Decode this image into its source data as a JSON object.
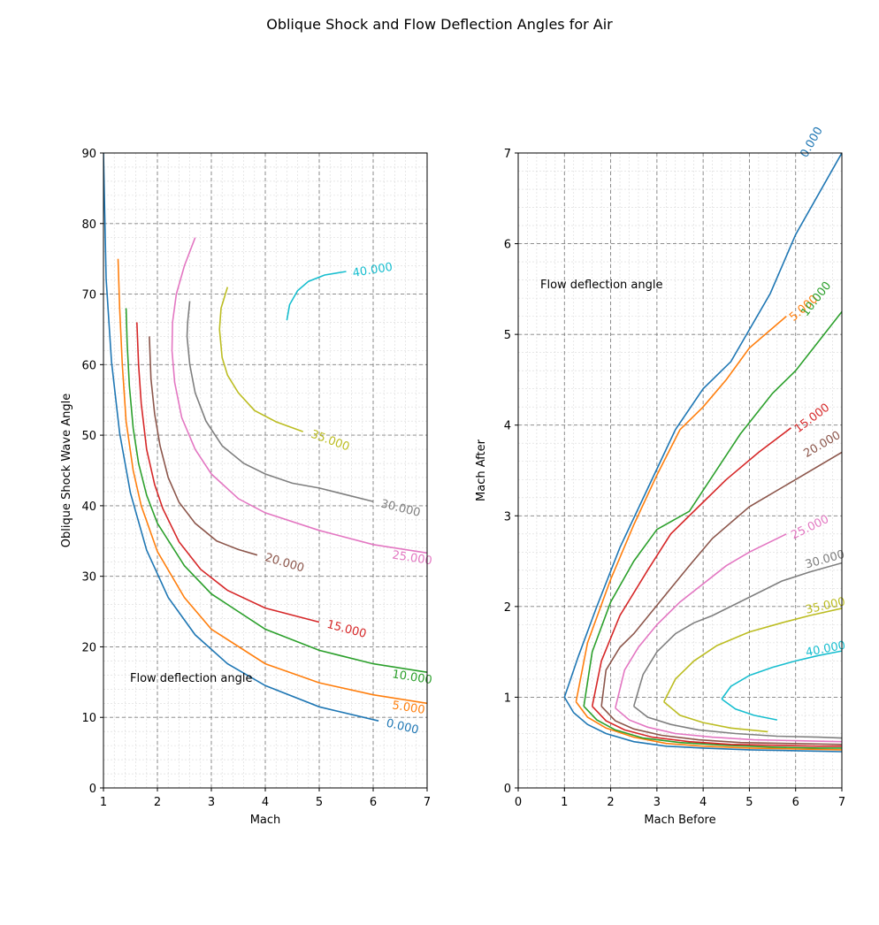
{
  "title": "Oblique Shock and Flow Deflection Angles for Air",
  "chart_data": [
    {
      "type": "line",
      "subtype": "contour",
      "xlabel": "Mach",
      "ylabel": "Oblique Shock Wave Angle",
      "xlim": [
        1,
        7
      ],
      "ylim": [
        0,
        90
      ],
      "xticks": [
        1,
        2,
        3,
        4,
        5,
        6,
        7
      ],
      "yticks": [
        0,
        10,
        20,
        30,
        40,
        50,
        60,
        70,
        80,
        90
      ],
      "grid": "major dashed, minor dotted",
      "annotation": "Flow deflection angle",
      "series": [
        {
          "name": "0.000",
          "color": "#1f77b4",
          "x": [
            1.0,
            1.05,
            1.15,
            1.3,
            1.5,
            1.8,
            2.2,
            2.7,
            3.3,
            4.0,
            5.0,
            6.1
          ],
          "y": [
            90,
            72.2,
            60.4,
            50.3,
            41.8,
            33.7,
            27.0,
            21.7,
            17.6,
            14.5,
            11.5,
            9.5
          ],
          "label": "0.000"
        },
        {
          "name": "5.000",
          "color": "#ff7f0e",
          "x": [
            1.27,
            1.3,
            1.35,
            1.42,
            1.55,
            1.7,
            2.0,
            2.5,
            3.0,
            4.0,
            5.0,
            6.0,
            7.0
          ],
          "y": [
            75,
            68,
            60,
            52,
            45,
            40,
            33.5,
            27,
            22.5,
            17.6,
            14.9,
            13.2,
            12.0
          ],
          "label": "5.000"
        },
        {
          "name": "10.000",
          "color": "#2ca02c",
          "x": [
            1.42,
            1.44,
            1.48,
            1.55,
            1.65,
            1.8,
            2.0,
            2.5,
            3.0,
            4.0,
            5.0,
            6.0,
            7.0
          ],
          "y": [
            68,
            63,
            57,
            51,
            46,
            41.5,
            37.5,
            31.5,
            27.5,
            22.5,
            19.5,
            17.6,
            16.4
          ],
          "label": "10.000"
        },
        {
          "name": "15.000",
          "color": "#d62728",
          "x": [
            1.62,
            1.65,
            1.7,
            1.8,
            1.95,
            2.1,
            2.4,
            2.8,
            3.3,
            4.0,
            5.0
          ],
          "y": [
            66,
            60,
            54.5,
            48,
            43,
            39.6,
            34.9,
            31,
            28,
            25.5,
            23.5
          ],
          "label": "15.000"
        },
        {
          "name": "20.000",
          "color": "#8c564b",
          "x": [
            1.85,
            1.88,
            1.95,
            2.05,
            2.2,
            2.4,
            2.7,
            3.1,
            3.5,
            3.85
          ],
          "y": [
            64,
            58,
            53,
            48.5,
            44,
            40.5,
            37.5,
            35,
            33.8,
            33.0
          ],
          "label": "20.000"
        },
        {
          "name": "25.000",
          "color": "#e377c2",
          "x": [
            2.7,
            2.5,
            2.35,
            2.28,
            2.27,
            2.32,
            2.45,
            2.7,
            3.0,
            3.5,
            4.0,
            5.0,
            6.0,
            7.0
          ],
          "y": [
            78,
            74,
            70,
            66,
            62,
            57.5,
            52.5,
            48,
            44.5,
            41,
            39,
            36.5,
            34.5,
            33.3
          ],
          "label": "25.000"
        },
        {
          "name": "30.000",
          "color": "#7f7f7f",
          "x": [
            2.6,
            2.56,
            2.55,
            2.6,
            2.7,
            2.9,
            3.2,
            3.6,
            4.0,
            4.5,
            5.0,
            6.0
          ],
          "y": [
            69,
            66,
            64,
            60,
            56,
            52,
            48.5,
            46,
            44.5,
            43.2,
            42.5,
            40.6
          ],
          "label": "30.000"
        },
        {
          "name": "35.000",
          "color": "#bcbd22",
          "x": [
            3.3,
            3.18,
            3.15,
            3.2,
            3.3,
            3.5,
            3.8,
            4.2,
            4.7
          ],
          "y": [
            71,
            68,
            65,
            61,
            58.5,
            56,
            53.5,
            51.9,
            50.5
          ],
          "label": "35.000"
        },
        {
          "name": "40.000",
          "color": "#17becf",
          "x": [
            4.4,
            4.45,
            4.6,
            4.8,
            5.1,
            5.5
          ],
          "y": [
            66.3,
            68.5,
            70.5,
            71.8,
            72.7,
            73.2
          ],
          "label": "40.000"
        }
      ]
    },
    {
      "type": "line",
      "subtype": "contour",
      "xlabel": "Mach Before",
      "ylabel": "Mach After",
      "xlim": [
        0,
        7
      ],
      "ylim": [
        0,
        7
      ],
      "xticks": [
        0,
        1,
        2,
        3,
        4,
        5,
        6,
        7
      ],
      "yticks": [
        0,
        1,
        2,
        3,
        4,
        5,
        6,
        7
      ],
      "grid": "major dashed, minor dotted",
      "annotation": "Flow deflection angle",
      "series": [
        {
          "name": "0.000",
          "color": "#1f77b4",
          "x": [
            1.0,
            1.3,
            1.7,
            2.2,
            2.8,
            3.4,
            4.0,
            4.6,
            5.45,
            6.0,
            7.0
          ],
          "y": [
            1.0,
            1.45,
            2.0,
            2.65,
            3.3,
            3.95,
            4.4,
            4.7,
            5.45,
            6.1,
            7.0
          ],
          "label": "0.000"
        },
        {
          "name": "5.000",
          "color": "#ff7f0e",
          "x": [
            1.25,
            1.5,
            2.0,
            2.5,
            3.0,
            3.5,
            4.0,
            4.5,
            5.0,
            5.8
          ],
          "y": [
            0.95,
            1.6,
            2.3,
            2.9,
            3.45,
            3.95,
            4.2,
            4.5,
            4.85,
            5.2
          ],
          "label": "5.000"
        },
        {
          "name": "10.000",
          "color": "#2ca02c",
          "x": [
            1.42,
            1.6,
            2.0,
            2.5,
            3.0,
            3.7,
            4.8,
            5.5,
            6.0,
            7.0
          ],
          "y": [
            0.9,
            1.5,
            2.05,
            2.5,
            2.85,
            3.05,
            3.9,
            4.35,
            4.6,
            5.25
          ],
          "label": "10.000"
        },
        {
          "name": "15.000",
          "color": "#d62728",
          "x": [
            1.6,
            1.8,
            2.2,
            2.8,
            3.3,
            3.9,
            4.5,
            5.2,
            5.9
          ],
          "y": [
            0.9,
            1.4,
            1.9,
            2.4,
            2.8,
            3.1,
            3.4,
            3.7,
            3.97
          ],
          "label": "15.000"
        },
        {
          "name": "20.000",
          "color": "#8c564b",
          "x": [
            1.8,
            1.9,
            2.2,
            2.5,
            3.7,
            4.2,
            5.0,
            6.0,
            7.0
          ],
          "y": [
            0.9,
            1.3,
            1.55,
            1.7,
            2.45,
            2.75,
            3.1,
            3.4,
            3.7
          ],
          "label": "20.000"
        },
        {
          "name": "25.000",
          "color": "#e377c2",
          "x": [
            2.1,
            2.3,
            2.6,
            3.0,
            3.5,
            4.0,
            4.5,
            5.0,
            5.8
          ],
          "y": [
            0.88,
            1.3,
            1.55,
            1.8,
            2.05,
            2.25,
            2.45,
            2.6,
            2.8
          ],
          "label": "25.000"
        },
        {
          "name": "30.000",
          "color": "#7f7f7f",
          "x": [
            2.5,
            2.7,
            3.0,
            3.4,
            3.8,
            4.2,
            5.7,
            6.3,
            7.0
          ],
          "y": [
            0.9,
            1.25,
            1.5,
            1.7,
            1.82,
            1.9,
            2.28,
            2.38,
            2.48
          ],
          "label": "30.000"
        },
        {
          "name": "35.000",
          "color": "#bcbd22",
          "x": [
            3.15,
            3.4,
            3.8,
            4.3,
            5.0,
            5.7,
            6.3,
            7.0
          ],
          "y": [
            0.95,
            1.2,
            1.4,
            1.57,
            1.72,
            1.82,
            1.9,
            1.98
          ],
          "label": "35.000"
        },
        {
          "name": "40.000",
          "color": "#17becf",
          "x": [
            4.4,
            4.6,
            5.0,
            5.5,
            6.0,
            6.5,
            7.0
          ],
          "y": [
            0.98,
            1.12,
            1.24,
            1.33,
            1.4,
            1.46,
            1.51
          ],
          "label": "40.000"
        }
      ],
      "lower_branch": [
        {
          "color": "#1f77b4",
          "x": [
            1.0,
            1.2,
            1.5,
            1.9,
            2.5,
            3.2,
            4.0,
            5.0,
            6.0,
            7.0
          ],
          "y": [
            1.0,
            0.83,
            0.7,
            0.6,
            0.51,
            0.46,
            0.44,
            0.42,
            0.41,
            0.4
          ]
        },
        {
          "color": "#ff7f0e",
          "x": [
            1.25,
            1.5,
            1.9,
            2.5,
            3.2,
            4.0,
            5.0,
            6.0,
            7.0
          ],
          "y": [
            0.95,
            0.78,
            0.66,
            0.56,
            0.49,
            0.46,
            0.44,
            0.43,
            0.42
          ]
        },
        {
          "color": "#2ca02c",
          "x": [
            1.42,
            1.7,
            2.1,
            2.7,
            3.5,
            4.5,
            5.5,
            6.5,
            7.0
          ],
          "y": [
            0.9,
            0.75,
            0.64,
            0.55,
            0.5,
            0.47,
            0.45,
            0.44,
            0.44
          ]
        },
        {
          "color": "#d62728",
          "x": [
            1.6,
            1.9,
            2.3,
            2.9,
            3.7,
            4.6,
            5.6,
            6.5,
            7.0
          ],
          "y": [
            0.9,
            0.74,
            0.64,
            0.56,
            0.51,
            0.48,
            0.47,
            0.46,
            0.46
          ]
        },
        {
          "color": "#8c564b",
          "x": [
            1.8,
            2.1,
            2.5,
            3.1,
            3.9,
            4.8,
            5.8,
            7.0
          ],
          "y": [
            0.9,
            0.74,
            0.65,
            0.58,
            0.53,
            0.5,
            0.49,
            0.48
          ]
        },
        {
          "color": "#e377c2",
          "x": [
            2.1,
            2.4,
            2.8,
            3.4,
            4.2,
            5.1,
            6.1,
            7.0
          ],
          "y": [
            0.88,
            0.75,
            0.67,
            0.6,
            0.56,
            0.53,
            0.52,
            0.51
          ]
        },
        {
          "color": "#7f7f7f",
          "x": [
            2.5,
            2.8,
            3.3,
            3.9,
            4.7,
            5.6,
            6.5,
            7.0
          ],
          "y": [
            0.9,
            0.78,
            0.7,
            0.64,
            0.6,
            0.57,
            0.56,
            0.55
          ]
        },
        {
          "color": "#bcbd22",
          "x": [
            3.15,
            3.5,
            4.0,
            4.6,
            5.4
          ],
          "y": [
            0.95,
            0.8,
            0.72,
            0.66,
            0.62
          ]
        },
        {
          "color": "#17becf",
          "x": [
            4.4,
            4.7,
            5.1,
            5.6
          ],
          "y": [
            0.98,
            0.87,
            0.8,
            0.75
          ]
        }
      ]
    }
  ]
}
